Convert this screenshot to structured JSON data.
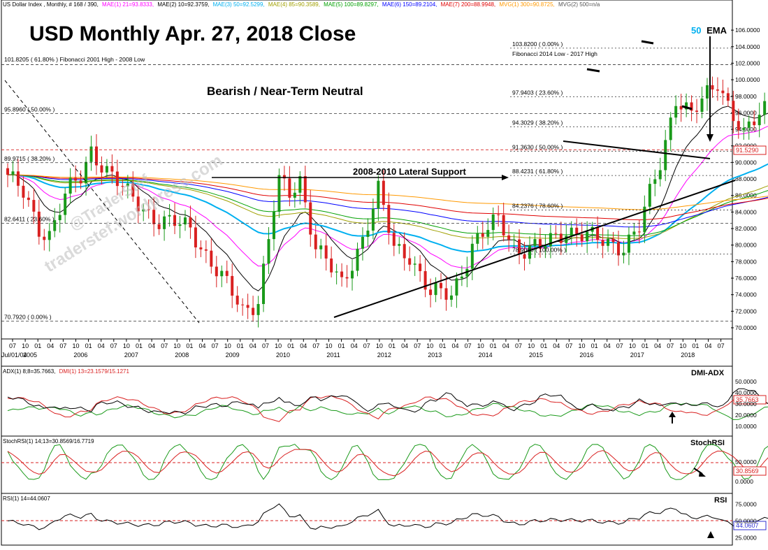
{
  "header": {
    "symbol": "US Dollar Index , Monthly, # 168 / 390,",
    "mae1": "MAE(1) 21=93.8333,",
    "mae2": "MAE(2) 10=92.3759,",
    "mae3": "MAE(3) 50=92.5299,",
    "mae4": "MAE(4) 85=90.3589,",
    "mae5": "MAE(5) 100=89.8297,",
    "mae6": "MAE(6) 150=89.2104,",
    "mae7": "MAE(7) 200=88.9948,",
    "mvg1": "MVG(1) 300=90.8725,",
    "mvg2": "MVG(2) 500=n/a"
  },
  "annotations": {
    "title": "USD Monthly Apr. 27, 2018 Close",
    "subtitle": "Bearish / Near-Term Neutral",
    "lateral": "2008-2010 Lateral Support",
    "ema_num": "50",
    "ema_txt": "EMA",
    "watermark": "@TraderStef",
    "watermark2": "traderstef.wordpress.com",
    "fib_left_title": "101.8205 ( 61.80% ) Fibonacci 2001 High - 2008 Low",
    "fib_right_title": "Fibonacci 2014 Low - 2017 High"
  },
  "fib_left": [
    {
      "label": "101.8205 ( 61.80% )",
      "value": 101.82
    },
    {
      "label": "95.8960 ( 50.00% )",
      "value": 95.9
    },
    {
      "label": "89.9715 ( 38.20% )",
      "value": 89.97
    },
    {
      "label": "82.6411 ( 23.60% )",
      "value": 82.64
    },
    {
      "label": "70.7920 ( 0.00% )",
      "value": 70.79
    }
  ],
  "fib_right": [
    {
      "label": "103.8200 ( 0.00% )",
      "value": 103.82
    },
    {
      "label": "97.9403 ( 23.60% )",
      "value": 97.94
    },
    {
      "label": "94.3029 ( 38.20% )",
      "value": 94.3
    },
    {
      "label": "91.3630 ( 50.00% )",
      "value": 91.36
    },
    {
      "label": "88.4231 ( 61.80% )",
      "value": 88.42
    },
    {
      "label": "84.2376 ( 78.60% )",
      "value": 84.24
    },
    {
      "label": "78.9060 ( 100.00% )",
      "value": 78.91
    }
  ],
  "price_axis": [
    "106.0000",
    "104.0000",
    "102.0000",
    "100.0000",
    "98.0000",
    "96.0000",
    "94.0000",
    "92.0000",
    "90.0000",
    "88.0000",
    "86.0000",
    "84.0000",
    "82.0000",
    "80.0000",
    "78.0000",
    "76.0000",
    "74.0000",
    "72.0000",
    "70.0000"
  ],
  "price_label": "91.5290",
  "date_start": "Jul/01/04",
  "month_ticks": [
    "07",
    "10",
    "01",
    "04",
    "07",
    "10",
    "01",
    "04",
    "07",
    "10",
    "01",
    "04",
    "07",
    "10",
    "01",
    "04",
    "07",
    "10",
    "01",
    "04",
    "07",
    "10",
    "01",
    "04",
    "07",
    "10",
    "01",
    "04",
    "07",
    "10",
    "01",
    "04",
    "07",
    "10",
    "01",
    "04",
    "07",
    "10",
    "01",
    "04",
    "07",
    "10",
    "01",
    "04",
    "07",
    "10",
    "01",
    "04",
    "07",
    "10",
    "01",
    "04",
    "07",
    "10",
    "01",
    "04",
    "07"
  ],
  "years": [
    "2005",
    "2006",
    "2007",
    "2008",
    "2009",
    "2010",
    "2011",
    "2012",
    "2013",
    "2014",
    "2015",
    "2016",
    "2017",
    "2018"
  ],
  "dmi": {
    "header_adx": "ADX(1) 8;8=35.7663,",
    "header_dmi": "DMI(1) 13=23.1579/15.1271",
    "title": "DMI-ADX",
    "axis": [
      "50.0000",
      "40.0000",
      "30.0000",
      "20.0000",
      "10.0000"
    ],
    "label": "35.7663"
  },
  "stoch": {
    "header": "StochRSI(1) 14;13=30.8569/16.7719",
    "title": "StochRSI",
    "axis": [
      "50.0000",
      "0.0000"
    ],
    "label": "30.8569"
  },
  "rsi": {
    "header": "RSI(1) 14=44.0607",
    "title": "RSI",
    "axis": [
      "75.0000",
      "50.0000",
      "25.0000"
    ],
    "label": "44.0607"
  },
  "chart_data": {
    "type": "candlestick",
    "title": "USD Monthly Apr. 27, 2018 Close",
    "x_start": "2004-07",
    "x_end": "2018-04",
    "ylim": [
      70,
      107
    ],
    "close_anchors": [
      [
        "2004-07",
        88.5
      ],
      [
        "2004-10",
        86.0
      ],
      [
        "2005-01",
        82.0
      ],
      [
        "2005-03",
        81.5
      ],
      [
        "2005-06",
        86.0
      ],
      [
        "2005-09",
        88.0
      ],
      [
        "2005-11",
        91.5
      ],
      [
        "2006-01",
        90.0
      ],
      [
        "2006-06",
        86.0
      ],
      [
        "2006-12",
        83.0
      ],
      [
        "2007-06",
        82.0
      ],
      [
        "2007-12",
        76.0
      ],
      [
        "2008-04",
        72.0
      ],
      [
        "2008-07",
        73.5
      ],
      [
        "2008-10",
        84.5
      ],
      [
        "2008-11",
        87.5
      ],
      [
        "2009-01",
        86.0
      ],
      [
        "2009-03",
        88.0
      ],
      [
        "2009-06",
        80.0
      ],
      [
        "2009-11",
        75.0
      ],
      [
        "2010-03",
        81.0
      ],
      [
        "2010-06",
        86.5
      ],
      [
        "2010-09",
        79.5
      ],
      [
        "2010-12",
        79.0
      ],
      [
        "2011-04",
        74.0
      ],
      [
        "2011-08",
        74.0
      ],
      [
        "2011-12",
        80.0
      ],
      [
        "2012-05",
        83.0
      ],
      [
        "2012-09",
        79.5
      ],
      [
        "2013-01",
        79.5
      ],
      [
        "2013-06",
        82.0
      ],
      [
        "2013-12",
        80.5
      ],
      [
        "2014-05",
        80.0
      ],
      [
        "2014-08",
        82.0
      ],
      [
        "2014-12",
        90.0
      ],
      [
        "2015-03",
        98.0
      ],
      [
        "2015-06",
        95.5
      ],
      [
        "2015-11",
        100.0
      ],
      [
        "2016-04",
        93.0
      ],
      [
        "2016-10",
        98.5
      ],
      [
        "2016-12",
        102.5
      ],
      [
        "2017-01",
        100.0
      ],
      [
        "2017-06",
        96.0
      ],
      [
        "2017-08",
        92.5
      ],
      [
        "2017-12",
        92.0
      ],
      [
        "2018-01",
        89.0
      ],
      [
        "2018-03",
        90.0
      ],
      [
        "2018-04",
        91.53
      ]
    ],
    "moving_averages": [
      {
        "name": "MAE(1) 21",
        "value": 93.8333,
        "color": "#ff00ff"
      },
      {
        "name": "MAE(2) 10",
        "value": 92.3759,
        "color": "#000000"
      },
      {
        "name": "MAE(3) 50",
        "value": 92.5299,
        "color": "#00b0f0"
      },
      {
        "name": "MAE(4) 85",
        "value": 90.3589,
        "color": "#a0a000"
      },
      {
        "name": "MAE(5) 100",
        "value": 89.8297,
        "color": "#00a000"
      },
      {
        "name": "MAE(6) 150",
        "value": 89.2104,
        "color": "#0000ff"
      },
      {
        "name": "MAE(7) 200",
        "value": 88.9948,
        "color": "#e00000"
      },
      {
        "name": "MVG(1) 300",
        "value": 90.8725,
        "color": "#ff9900"
      }
    ]
  },
  "colors": {
    "up": "#1a9a1a",
    "down": "#d92020",
    "grid": "#444444",
    "ema50": "#00b0f0"
  }
}
